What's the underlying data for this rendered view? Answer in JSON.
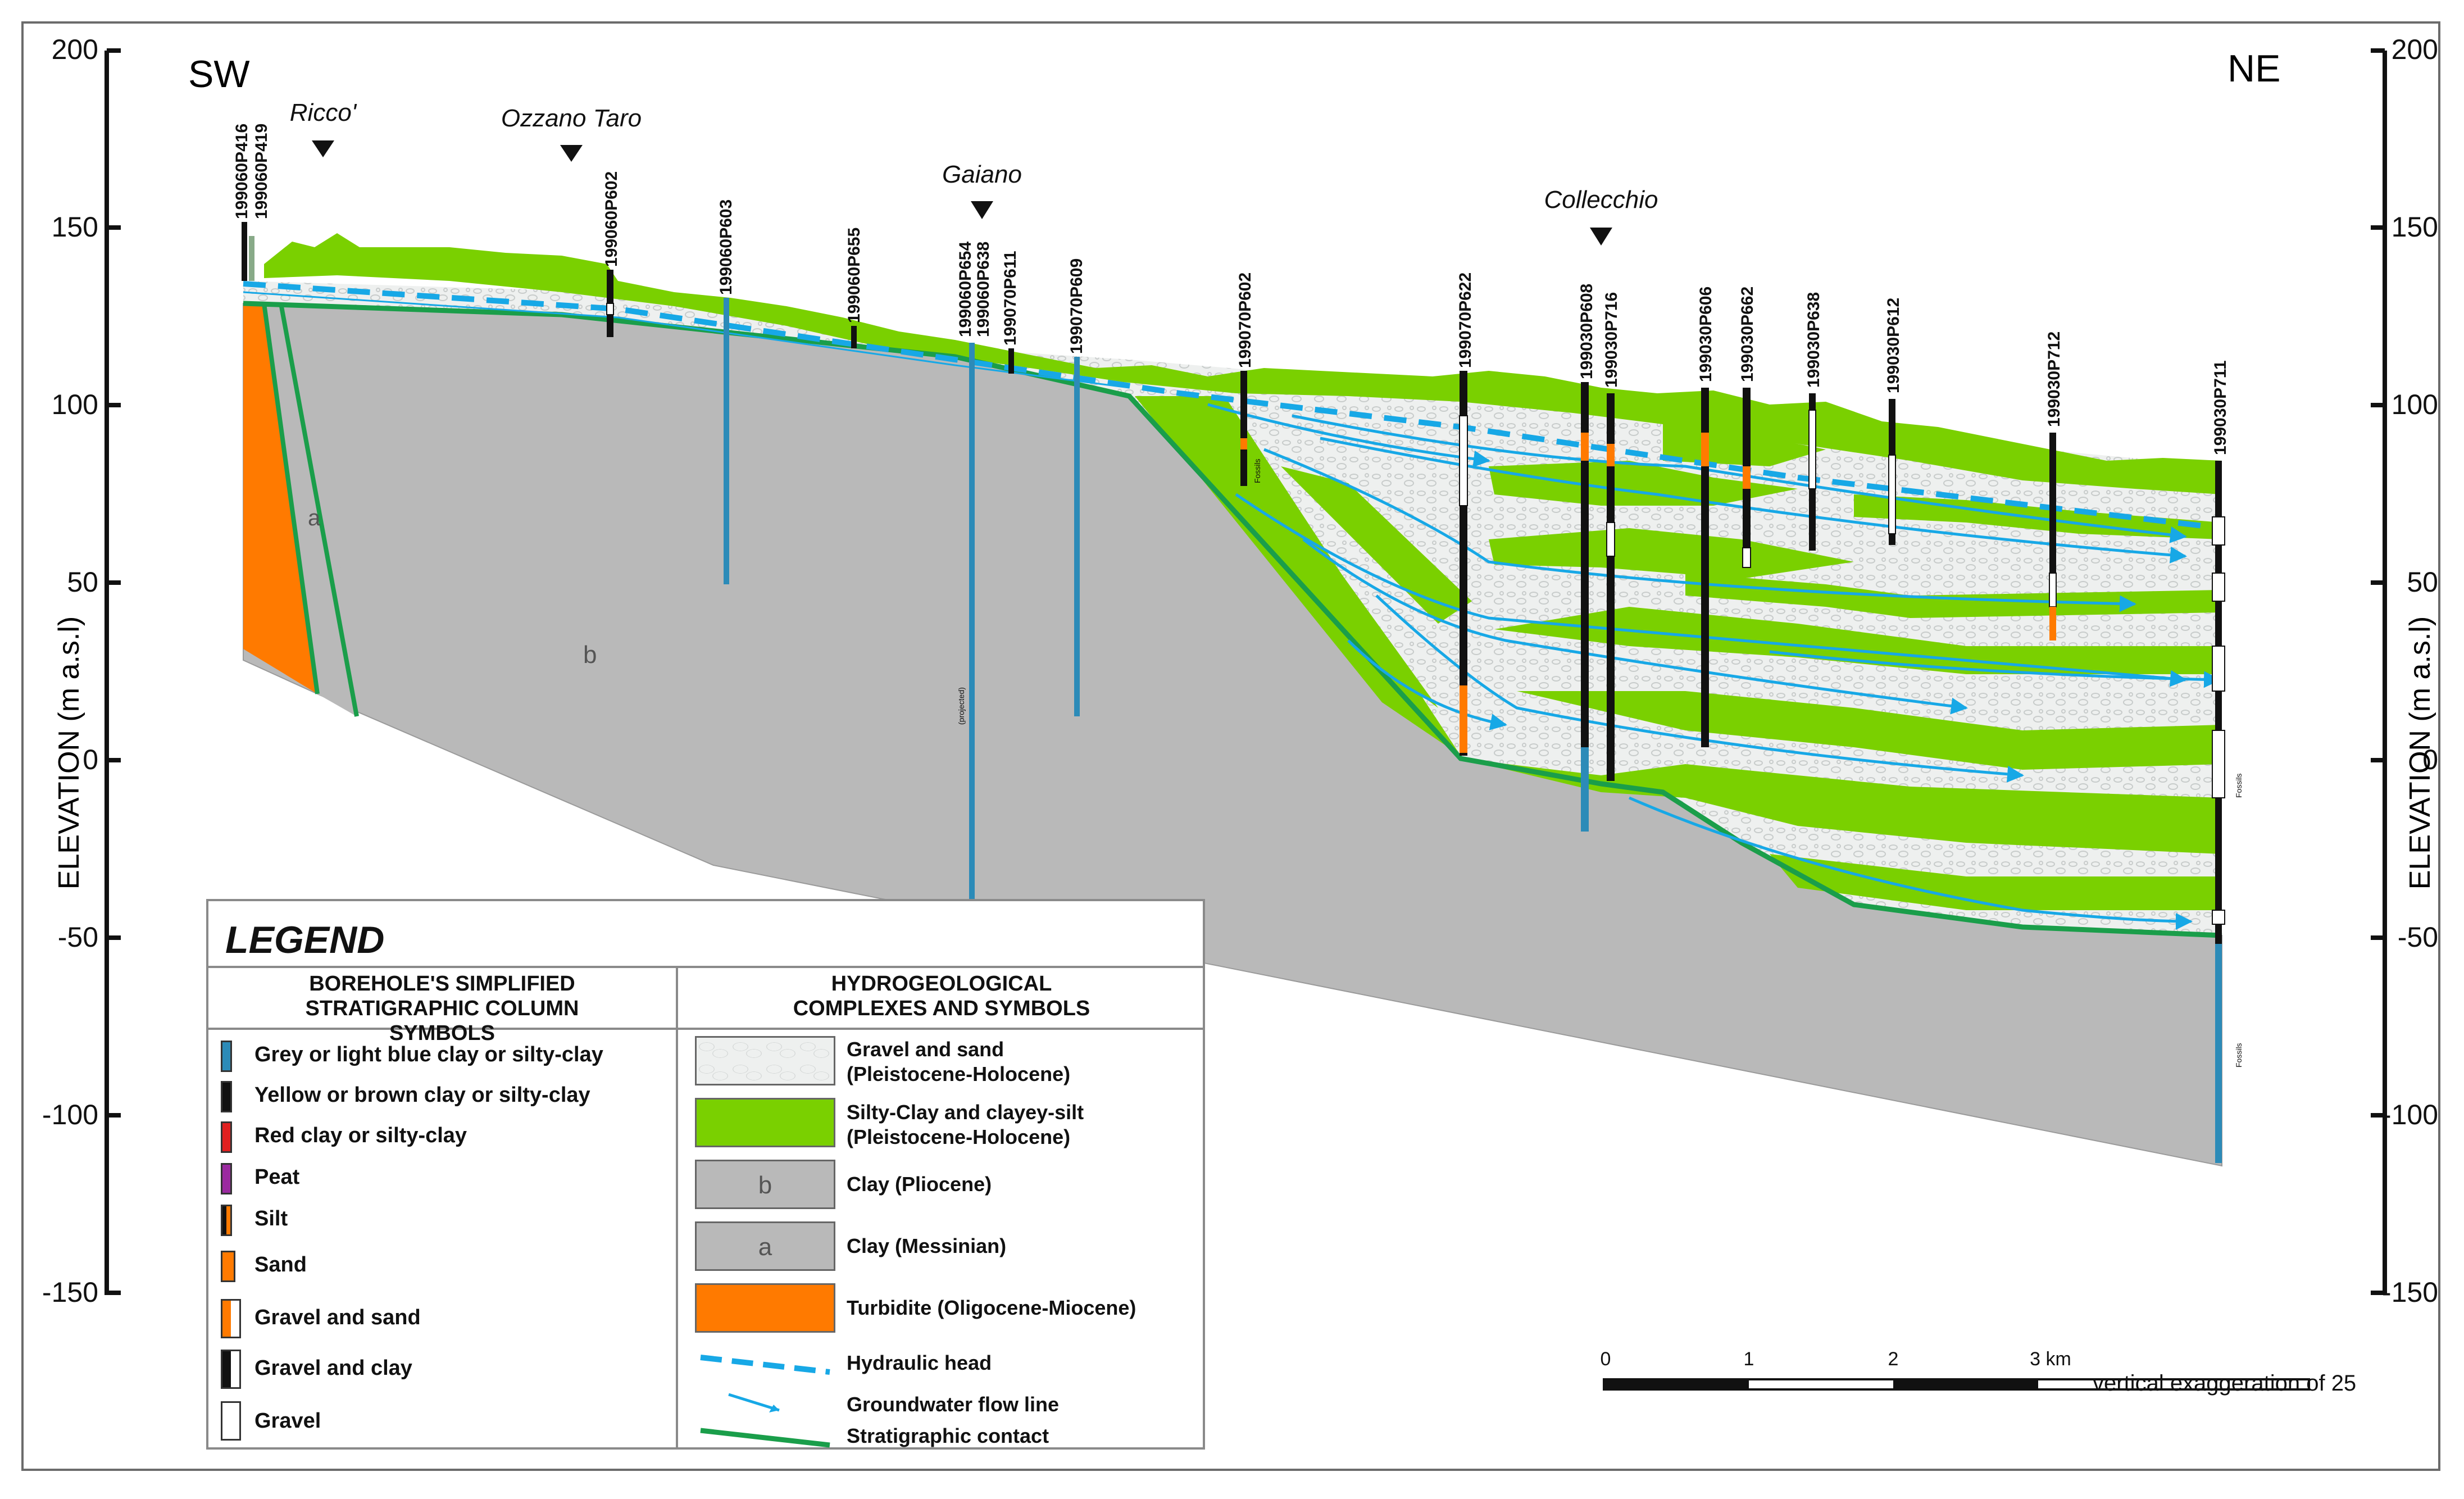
{
  "axis": {
    "label_left": "ELEVATION (m a.s.l)",
    "label_right": "ELEVATION (m a.s.l)",
    "ticks": [
      "200",
      "150",
      "100",
      "50",
      "0",
      "-50",
      "-100",
      "-150"
    ]
  },
  "directions": {
    "left": "SW",
    "right": "NE"
  },
  "localities": [
    "Ricco'",
    "Ozzano Taro",
    "Gaiano",
    "Collecchio"
  ],
  "boreholes": [
    "199060P416",
    "199060P419",
    "199060P602",
    "199060P603",
    "199060P655",
    "199060P654",
    "199060P638",
    "199070P611",
    "199070P609",
    "199070P602",
    "199070P622",
    "199030P608",
    "199030P716",
    "199030P606",
    "199030P662",
    "199030P638",
    "199030P612",
    "199030P712",
    "199030P711"
  ],
  "section_labels": {
    "a": "a",
    "b": "b",
    "projected": "(projected)",
    "fossils": "Fossils"
  },
  "scale_bar": {
    "ticks": [
      "0",
      "1",
      "2",
      "3 km"
    ],
    "note": "vertical exaggeration of 25"
  },
  "legend": {
    "title": "LEGEND",
    "left_header": "BOREHOLE'S SIMPLIFIED STRATIGRAPHIC COLUMN SYMBOLS",
    "right_header": "HYDROGEOLOGICAL COMPLEXES AND SYMBOLS",
    "left_items": [
      "Grey or light blue clay or silty-clay",
      "Yellow or brown clay or silty-clay",
      "Red clay or silty-clay",
      "Peat",
      "Silt",
      "Sand",
      "Gravel and sand",
      "Gravel and clay",
      "Gravel"
    ],
    "right_items": [
      {
        "line1": "Gravel and sand",
        "line2": "(Pleistocene-Holocene)"
      },
      {
        "line1": "Silty-Clay and clayey-silt",
        "line2": "(Pleistocene-Holocene)"
      },
      {
        "line1": "Clay (Pliocene)",
        "line2": "",
        "letter": "b"
      },
      {
        "line1": "Clay (Messinian)",
        "line2": "",
        "letter": "a"
      },
      {
        "line1": "Turbidite (Oligocene-Miocene)",
        "line2": ""
      },
      {
        "line1": "Hydraulic head",
        "line2": ""
      },
      {
        "line1": "Groundwater flow line",
        "line2": ""
      },
      {
        "line1": "Stratigraphic contact",
        "line2": ""
      }
    ]
  },
  "colors": {
    "grey_clay": "#b9b9b9",
    "green": "#7ad000",
    "orange": "#ff7a00",
    "blue_head": "#17a8e6",
    "contact": "#1a9e4a",
    "gravel": "#eef0ef"
  }
}
